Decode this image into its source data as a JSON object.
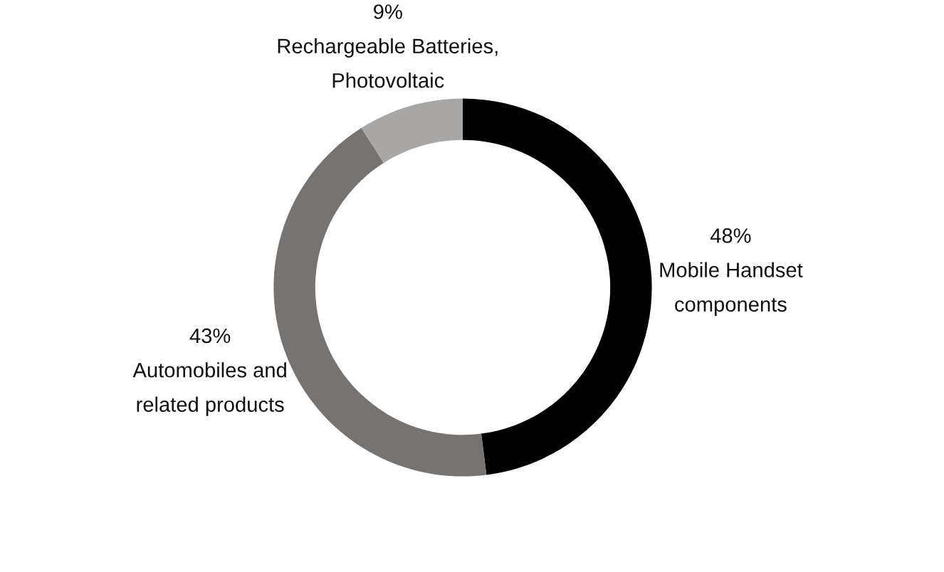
{
  "chart_data": {
    "type": "donut",
    "categories": [
      "Mobile Handset\ncomponents",
      "Automobiles and\nrelated products",
      "Rechargeable Batteries,\nPhotovoltaic"
    ],
    "values": [
      48,
      43,
      9
    ],
    "colors": [
      "#000000",
      "#767371",
      "#a9a7a5"
    ],
    "value_labels": [
      "48%",
      "43%",
      "9%"
    ],
    "legend": false
  }
}
